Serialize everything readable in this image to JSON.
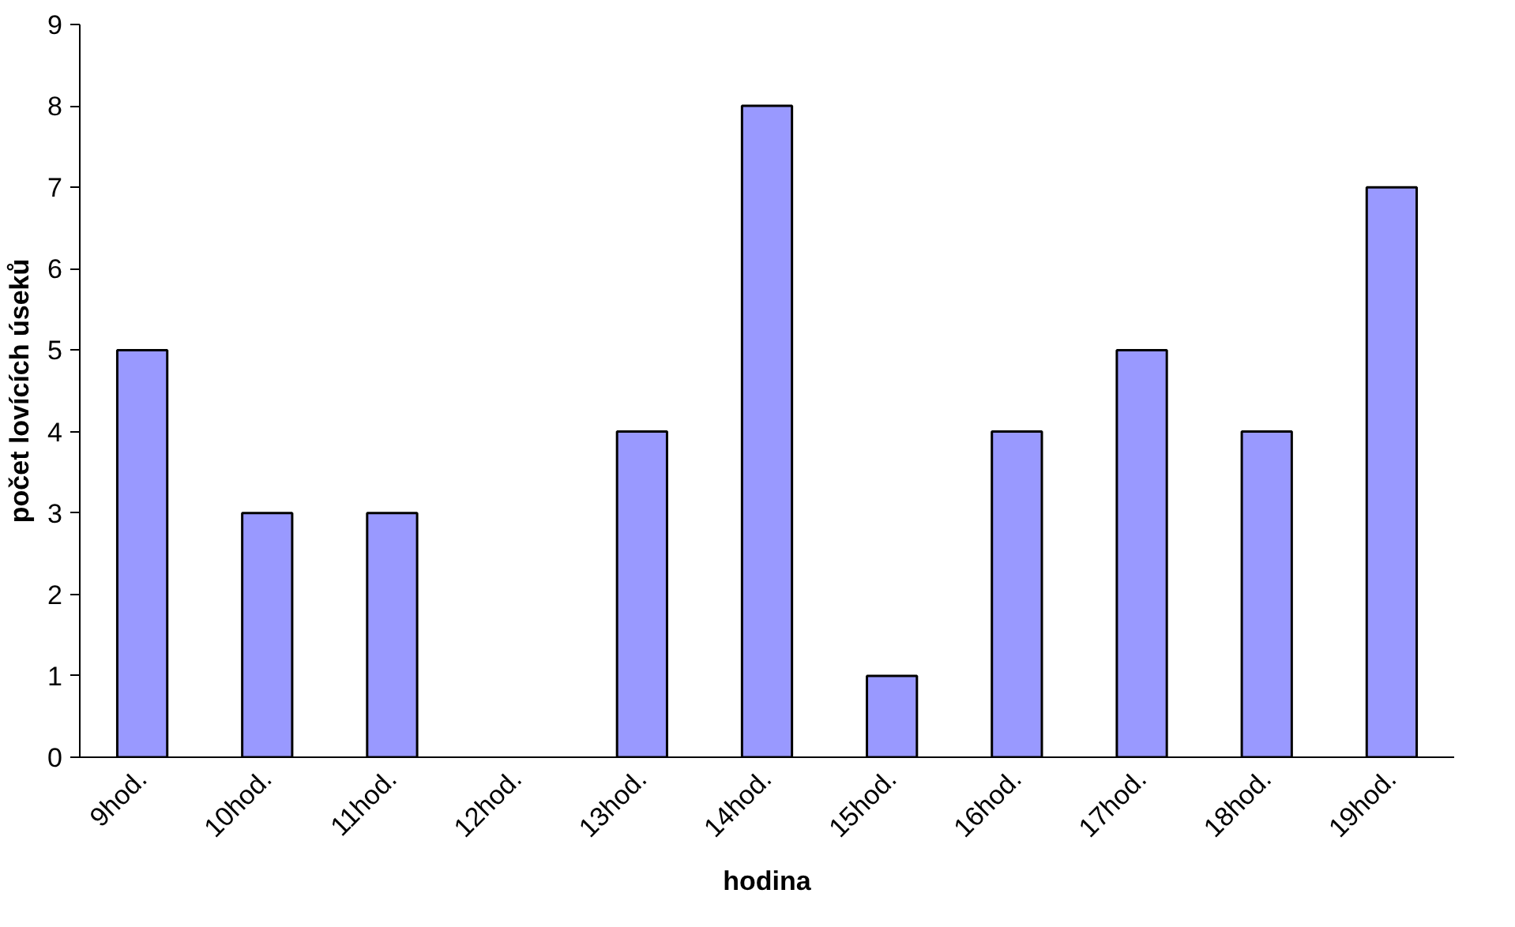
{
  "chart_data": {
    "type": "bar",
    "xlabel": "hodina",
    "ylabel": "počet lovících úseků",
    "categories": [
      "9hod.",
      "10hod.",
      "11hod.",
      "12hod.",
      "13hod.",
      "14hod.",
      "15hod.",
      "16hod.",
      "17hod.",
      "18hod.",
      "19hod."
    ],
    "values": [
      5,
      3,
      3,
      0,
      4,
      8,
      1,
      4,
      5,
      4,
      7
    ],
    "color": "#9999ff",
    "ylim": [
      0,
      9
    ],
    "yticks": [
      0,
      1,
      2,
      3,
      4,
      5,
      6,
      7,
      8,
      9
    ],
    "grid": false
  }
}
